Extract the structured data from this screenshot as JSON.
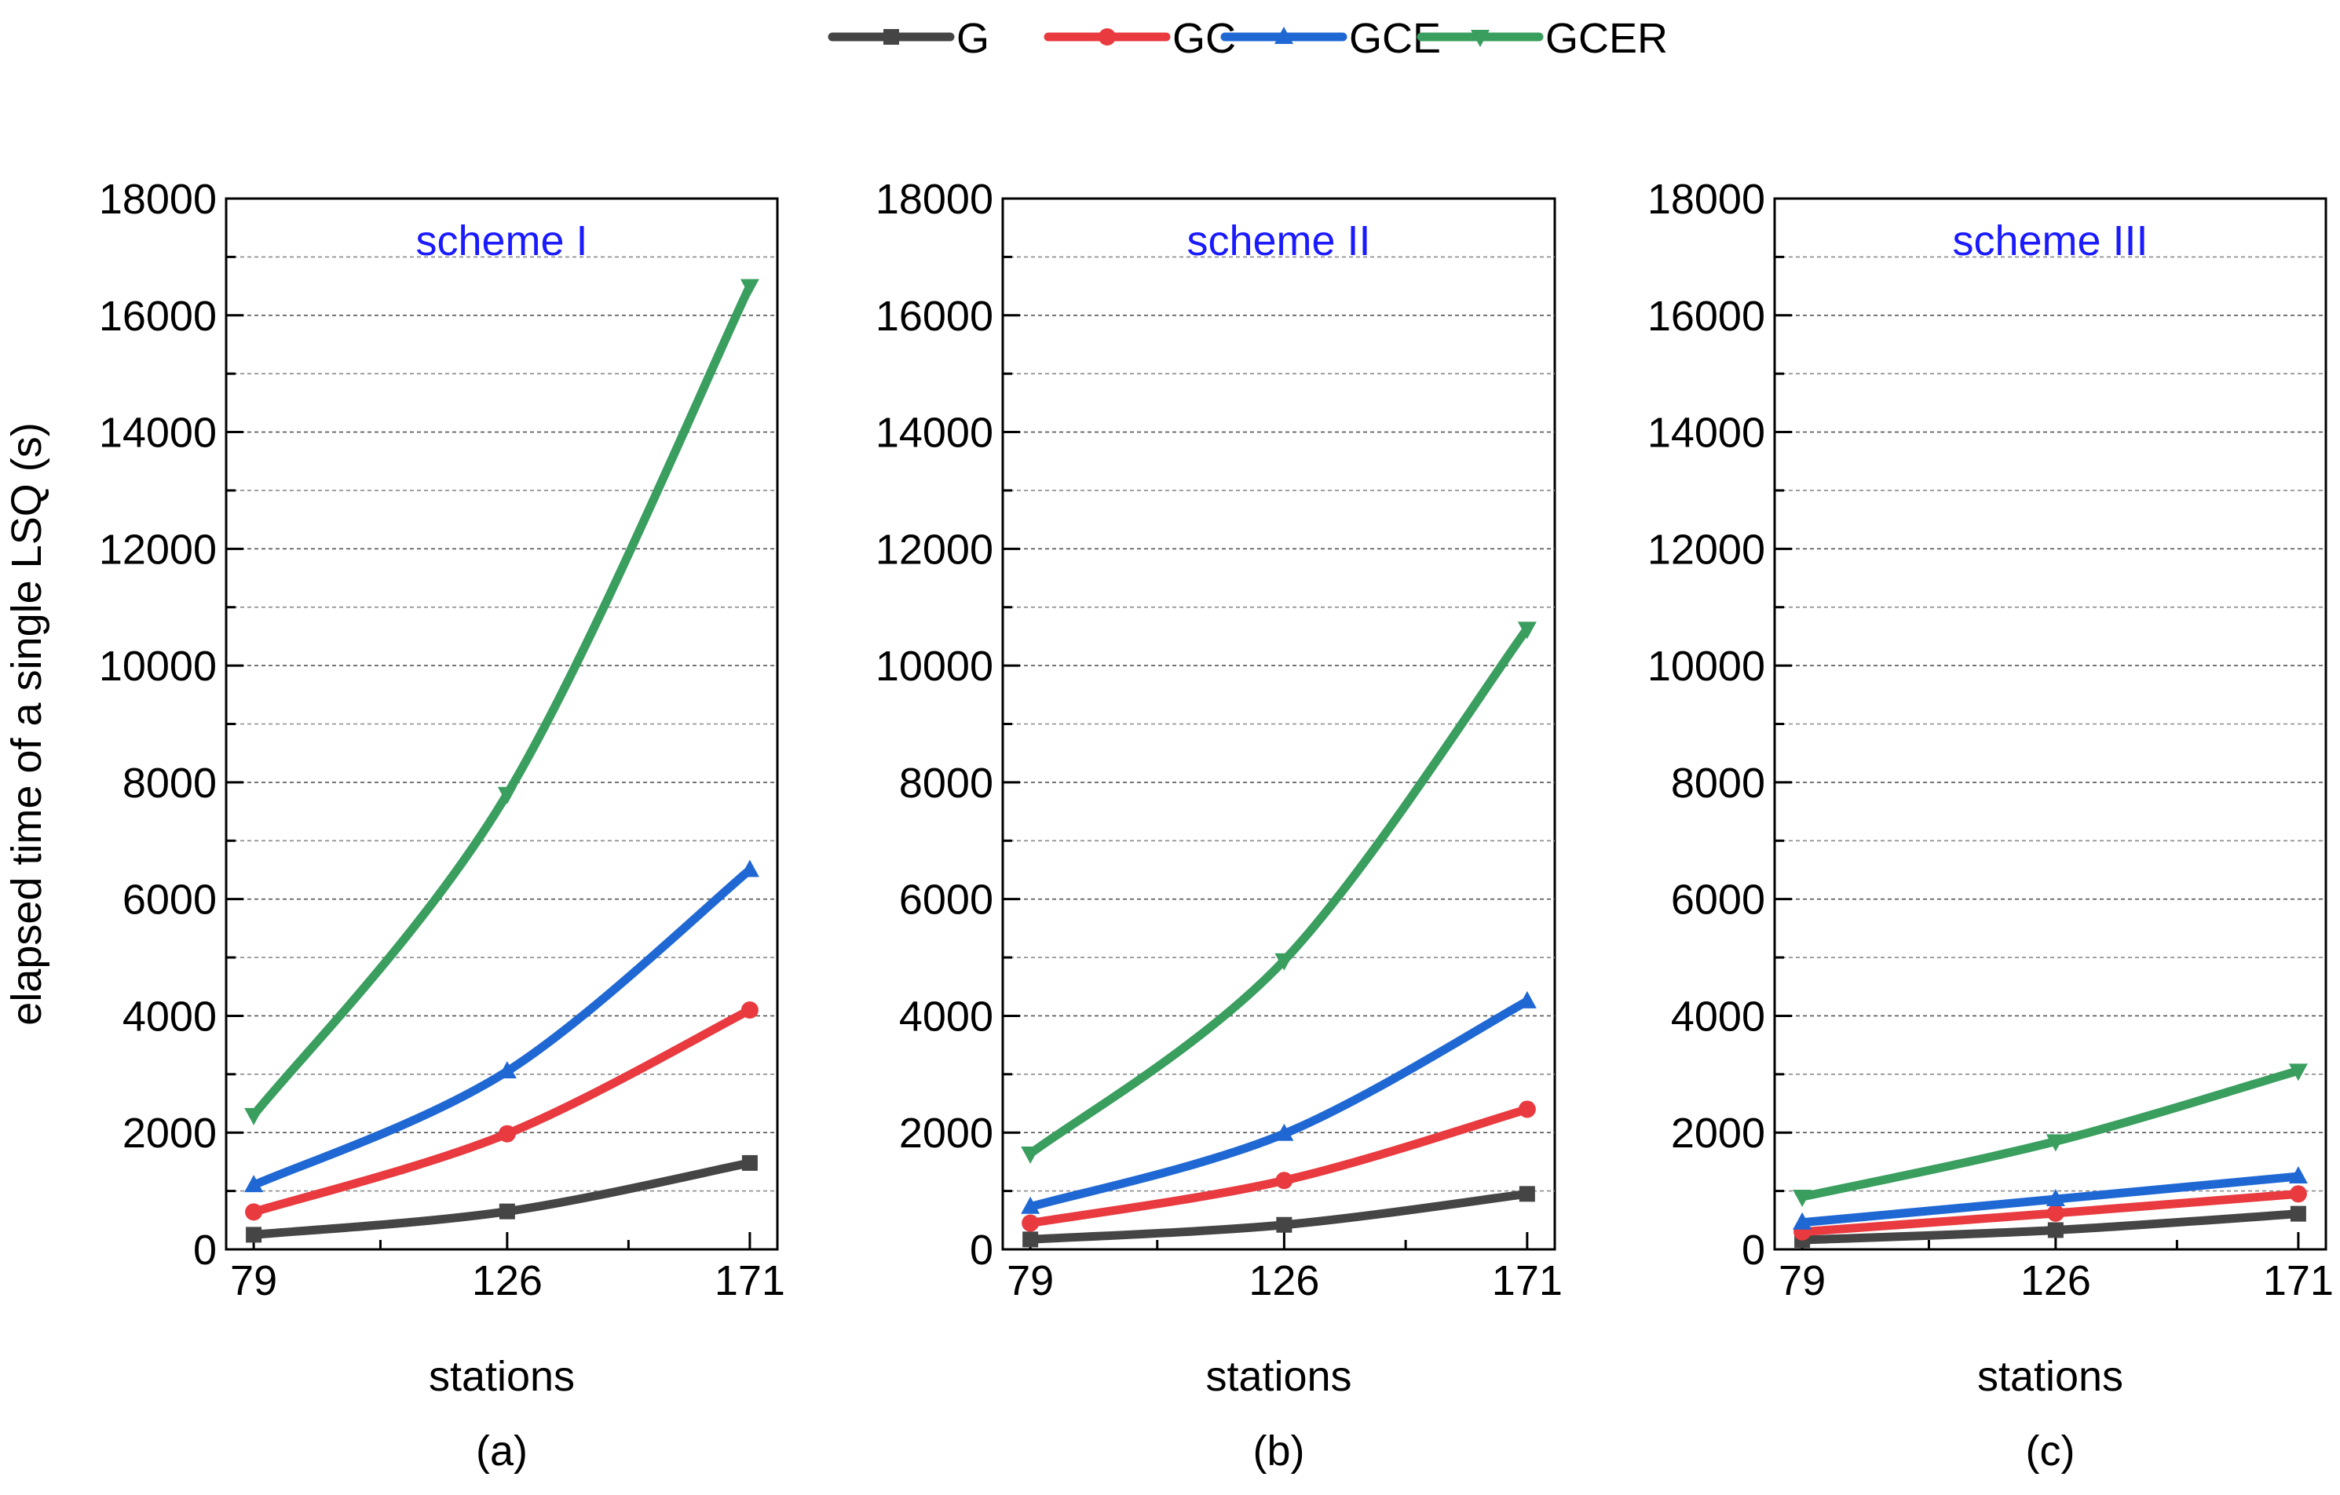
{
  "legend": {
    "entries": [
      {
        "name": "G",
        "color": "#454545",
        "marker": "square"
      },
      {
        "name": "GC",
        "color": "#e83a3f",
        "marker": "circle"
      },
      {
        "name": "GCE",
        "color": "#1f68d4",
        "marker": "triangle-up"
      },
      {
        "name": "GCER",
        "color": "#3a9e5f",
        "marker": "triangle-down"
      }
    ]
  },
  "chart_data": [
    {
      "type": "line",
      "panel_label": "(a)",
      "title": "scheme I",
      "title_color": "#1a1aff",
      "xlabel": "stations",
      "ylabel": "elapsed time of a single LSQ (s)",
      "x": [
        79,
        126,
        171
      ],
      "xticks": [
        "79",
        "126",
        "171"
      ],
      "ylim": [
        0,
        18000
      ],
      "yticks": [
        "0",
        "2000",
        "4000",
        "6000",
        "8000",
        "10000",
        "12000",
        "14000",
        "16000",
        "18000"
      ],
      "grid": true,
      "series": [
        {
          "name": "G",
          "values": [
            250,
            650,
            1480
          ]
        },
        {
          "name": "GC",
          "values": [
            640,
            1980,
            4100
          ]
        },
        {
          "name": "GCE",
          "values": [
            1100,
            3050,
            6500
          ]
        },
        {
          "name": "GCER",
          "values": [
            2300,
            7800,
            16500
          ]
        }
      ]
    },
    {
      "type": "line",
      "panel_label": "(b)",
      "title": "scheme II",
      "title_color": "#1a1aff",
      "xlabel": "stations",
      "ylabel": "",
      "x": [
        79,
        126,
        171
      ],
      "xticks": [
        "79",
        "126",
        "171"
      ],
      "ylim": [
        0,
        18000
      ],
      "yticks": [
        "0",
        "2000",
        "4000",
        "6000",
        "8000",
        "10000",
        "12000",
        "14000",
        "16000",
        "18000"
      ],
      "grid": true,
      "series": [
        {
          "name": "G",
          "values": [
            170,
            420,
            950
          ]
        },
        {
          "name": "GC",
          "values": [
            450,
            1180,
            2400
          ]
        },
        {
          "name": "GCE",
          "values": [
            730,
            1980,
            4250
          ]
        },
        {
          "name": "GCER",
          "values": [
            1640,
            4950,
            10630
          ]
        }
      ]
    },
    {
      "type": "line",
      "panel_label": "(c)",
      "title": "scheme III",
      "title_color": "#1a1aff",
      "xlabel": "stations",
      "ylabel": "",
      "x": [
        79,
        126,
        171
      ],
      "xticks": [
        "79",
        "126",
        "171"
      ],
      "ylim": [
        0,
        18000
      ],
      "yticks": [
        "0",
        "2000",
        "4000",
        "6000",
        "8000",
        "10000",
        "12000",
        "14000",
        "16000",
        "18000"
      ],
      "grid": true,
      "series": [
        {
          "name": "G",
          "values": [
            160,
            330,
            610
          ]
        },
        {
          "name": "GC",
          "values": [
            300,
            620,
            950
          ]
        },
        {
          "name": "GCE",
          "values": [
            460,
            860,
            1250
          ]
        },
        {
          "name": "GCER",
          "values": [
            900,
            1850,
            3060
          ]
        }
      ]
    }
  ]
}
